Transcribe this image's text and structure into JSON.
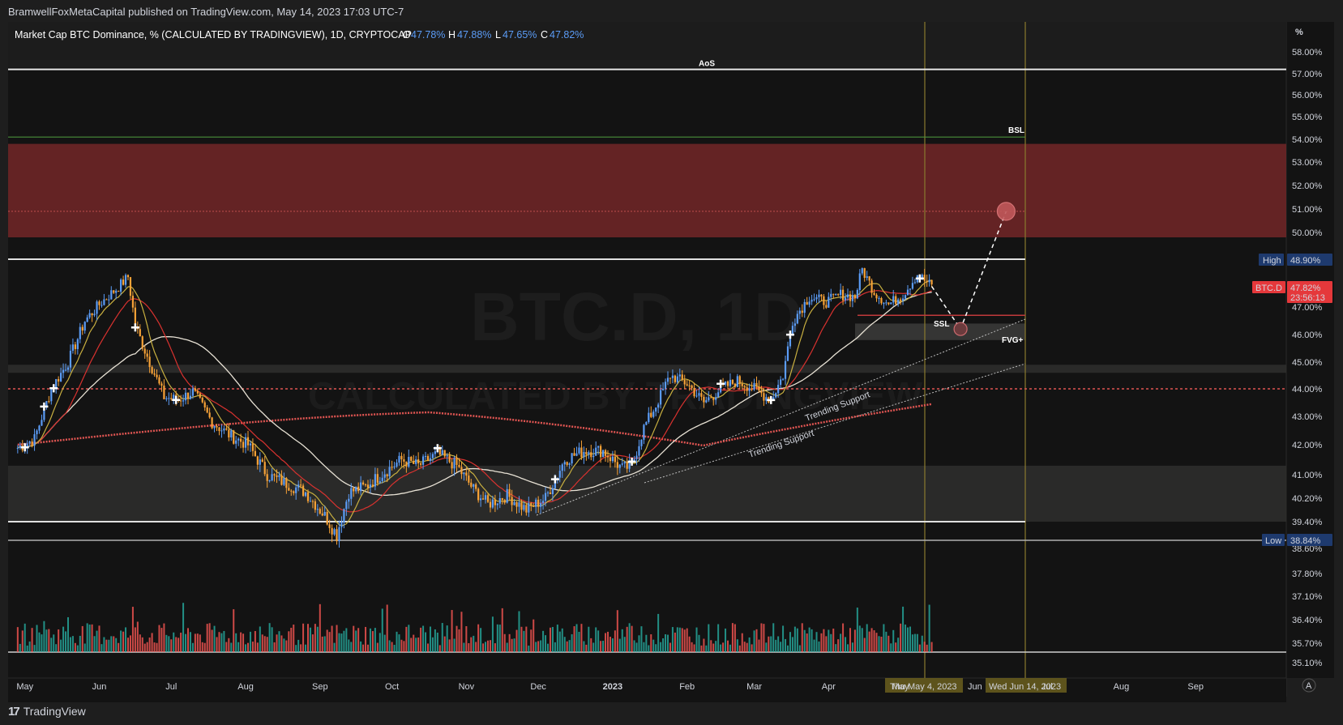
{
  "publisher_line": "BramwellFoxMetaCapital published on TradingView.com, May 14, 2023 17:03 UTC-7",
  "footer": {
    "brand": "TradingView",
    "logo_mark": "17"
  },
  "legend": {
    "title": "Market Cap BTC Dominance, % (CALCULATED BY TRADINGVIEW), 1D, CRYPTOCAP",
    "o_label": "O",
    "o_value": "47.78%",
    "h_label": "H",
    "h_value": "47.88%",
    "l_label": "L",
    "l_value": "47.65%",
    "c_label": "C",
    "c_value": "47.82%"
  },
  "watermark": {
    "symbol": "BTC.D, 1D",
    "source": "CALCULATED BY TRADINGVIEW"
  },
  "price_axis": {
    "unit_label": "%",
    "ticks": [
      "58.00%",
      "57.00%",
      "56.00%",
      "55.00%",
      "54.00%",
      "53.00%",
      "52.00%",
      "51.00%",
      "50.00%",
      "47.00%",
      "46.00%",
      "45.00%",
      "44.00%",
      "43.00%",
      "42.00%",
      "41.00%",
      "40.20%",
      "39.40%",
      "38.60%",
      "37.80%",
      "37.10%",
      "36.40%",
      "35.70%",
      "35.10%"
    ],
    "badges": {
      "high_label": "High",
      "high_value": "48.90%",
      "btcd_label": "BTC.D",
      "btcd_value": "47.82%",
      "countdown": "23:56:13",
      "low_label": "Low",
      "low_value": "38.84%"
    }
  },
  "time_axis": {
    "ticks": [
      "May",
      "Jun",
      "Jul",
      "Aug",
      "Sep",
      "Oct",
      "Nov",
      "Dec",
      "2023",
      "Feb",
      "Mar",
      "Apr",
      "May",
      "Jun",
      "Jul",
      "Aug",
      "Sep"
    ],
    "highlight_start": "Thu May 4, 2023",
    "highlight_end": "Wed Jun 14, 2023",
    "auto_scale_button": "A"
  },
  "annotations": {
    "aos": "AoS",
    "bsl": "BSL",
    "ssl": "SSL",
    "fvg": "FVG+",
    "trend_support_1": "Trending Support",
    "trend_support_2": "Trending Support"
  },
  "colors": {
    "background": "#1e1e1e",
    "chart_bg": "#131313",
    "candle_up": "#5b9cf6",
    "candle_down": "#f7a237",
    "supply_zone": "#6b2526",
    "ma_fast": "#c9b040",
    "ma_mid": "#d9322f",
    "ma_slow": "#e8e2d5",
    "ma_200": "#e05552",
    "volume_up": "#26a69a",
    "volume_down": "#ef5350",
    "badge_blue": "#1e3a6e",
    "badge_red": "#e5383b"
  },
  "chart_data": {
    "type": "candlestick",
    "title": "Market Cap BTC Dominance, % (CALCULATED BY TRADINGVIEW), 1D, CRYPTOCAP",
    "ylabel": "%",
    "ylim": [
      34.9,
      58.2
    ],
    "x": [
      "2022-05",
      "2022-06",
      "2022-07",
      "2022-08",
      "2022-09",
      "2022-10",
      "2022-11",
      "2022-12",
      "2023-01",
      "2023-02",
      "2023-03",
      "2023-04",
      "2023-05"
    ],
    "close_path": [
      [
        "2022-04-28",
        41.9
      ],
      [
        "2022-05-05",
        42.2
      ],
      [
        "2022-05-12",
        44.0
      ],
      [
        "2022-05-19",
        45.0
      ],
      [
        "2022-05-26",
        46.5
      ],
      [
        "2022-06-02",
        47.2
      ],
      [
        "2022-06-09",
        47.8
      ],
      [
        "2022-06-13",
        48.2
      ],
      [
        "2022-06-16",
        46.3
      ],
      [
        "2022-06-22",
        45.0
      ],
      [
        "2022-06-28",
        43.7
      ],
      [
        "2022-07-04",
        43.6
      ],
      [
        "2022-07-10",
        43.9
      ],
      [
        "2022-07-18",
        42.8
      ],
      [
        "2022-07-26",
        42.3
      ],
      [
        "2022-08-02",
        42.0
      ],
      [
        "2022-08-10",
        41.0
      ],
      [
        "2022-08-18",
        40.7
      ],
      [
        "2022-08-26",
        40.4
      ],
      [
        "2022-09-03",
        39.6
      ],
      [
        "2022-09-08",
        39.0
      ],
      [
        "2022-09-13",
        40.4
      ],
      [
        "2022-09-20",
        40.6
      ],
      [
        "2022-09-28",
        41.1
      ],
      [
        "2022-10-05",
        41.5
      ],
      [
        "2022-10-12",
        41.3
      ],
      [
        "2022-10-20",
        41.7
      ],
      [
        "2022-10-28",
        41.3
      ],
      [
        "2022-11-04",
        40.5
      ],
      [
        "2022-11-10",
        40.0
      ],
      [
        "2022-11-18",
        40.3
      ],
      [
        "2022-11-26",
        39.8
      ],
      [
        "2022-12-04",
        40.2
      ],
      [
        "2022-12-12",
        41.5
      ],
      [
        "2022-12-20",
        41.8
      ],
      [
        "2022-12-28",
        41.8
      ],
      [
        "2023-01-05",
        41.2
      ],
      [
        "2023-01-09",
        41.3
      ],
      [
        "2023-01-14",
        42.6
      ],
      [
        "2023-01-19",
        43.4
      ],
      [
        "2023-01-25",
        44.5
      ],
      [
        "2023-02-01",
        44.2
      ],
      [
        "2023-02-08",
        43.5
      ],
      [
        "2023-02-15",
        44.0
      ],
      [
        "2023-02-22",
        44.3
      ],
      [
        "2023-03-01",
        44.0
      ],
      [
        "2023-03-08",
        43.6
      ],
      [
        "2023-03-13",
        44.5
      ],
      [
        "2023-03-17",
        46.5
      ],
      [
        "2023-03-24",
        47.4
      ],
      [
        "2023-03-31",
        47.2
      ],
      [
        "2023-04-06",
        47.5
      ],
      [
        "2023-04-12",
        47.4
      ],
      [
        "2023-04-15",
        48.5
      ],
      [
        "2023-04-20",
        47.6
      ],
      [
        "2023-04-26",
        47.1
      ],
      [
        "2023-05-02",
        47.5
      ],
      [
        "2023-05-08",
        48.3
      ],
      [
        "2023-05-14",
        47.82
      ]
    ],
    "projection": [
      [
        "2023-05-14",
        47.82
      ],
      [
        "2023-05-26",
        46.2
      ],
      [
        "2023-06-14",
        50.9
      ]
    ],
    "series": [
      {
        "name": "Market Cap BTC Dominance",
        "last": 47.82,
        "open": 47.78,
        "high": 47.88,
        "low": 47.65
      }
    ],
    "levels": {
      "range_high": 48.9,
      "range_low": 38.84,
      "aos": 57.2,
      "bsl": 54.1,
      "supply_zone": [
        49.8,
        53.8
      ],
      "supply_mid": 50.9,
      "ssl": 46.7,
      "fvg": [
        45.8,
        46.4
      ],
      "mid_dotted": 44.0,
      "demand_zone": [
        39.4,
        41.3
      ],
      "upper_band": [
        44.6,
        44.9
      ]
    }
  }
}
